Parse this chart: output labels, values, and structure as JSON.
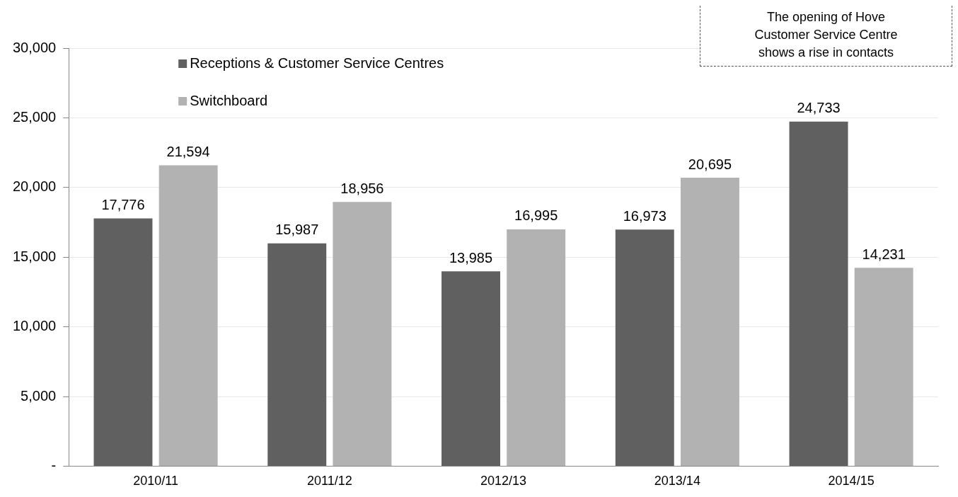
{
  "chart_data": {
    "type": "bar",
    "categories": [
      "2010/11",
      "2011/12",
      "2012/13",
      "2013/14",
      "2014/15"
    ],
    "series": [
      {
        "name": "Receptions & Customer Service Centres",
        "color": "#606060",
        "values": [
          17776,
          15987,
          13985,
          16973,
          24733
        ],
        "value_labels": [
          "17,776",
          "15,987",
          "13,985",
          "16,973",
          "24,733"
        ]
      },
      {
        "name": "Switchboard",
        "color": "#b2b2b2",
        "values": [
          21594,
          18956,
          16995,
          20695,
          14231
        ],
        "value_labels": [
          "21,594",
          "18,956",
          "16,995",
          "20,695",
          "14,231"
        ]
      }
    ],
    "ylim": [
      0,
      30000
    ],
    "yticks": [
      {
        "value": 0,
        "label": "-"
      },
      {
        "value": 5000,
        "label": "5,000"
      },
      {
        "value": 10000,
        "label": "10,000"
      },
      {
        "value": 15000,
        "label": "15,000"
      },
      {
        "value": 20000,
        "label": "20,000"
      },
      {
        "value": 25000,
        "label": "25,000"
      },
      {
        "value": 30000,
        "label": "30,000"
      }
    ],
    "grid": "y",
    "legend": "top left",
    "annotations": [
      "The opening of Hove\nCustomer Service Centre\nshows a rise in contacts"
    ]
  }
}
